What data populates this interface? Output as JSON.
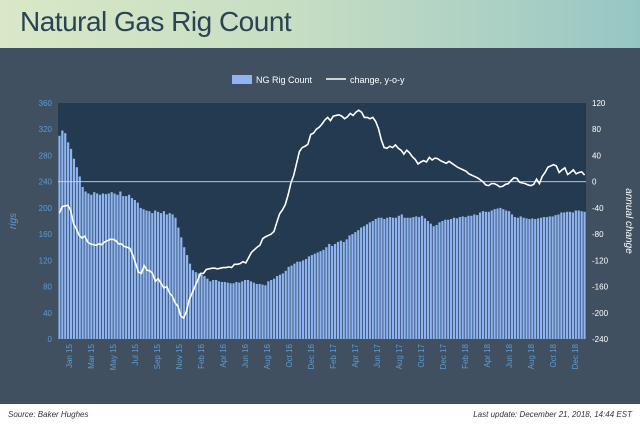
{
  "header": {
    "title": "Natural Gas Rig Count"
  },
  "footer": {
    "source": "Source: Baker Hughes",
    "updated": "Last update: December 21, 2018, 14:44 EST"
  },
  "colors": {
    "bar": "#8fb4f0",
    "line": "#ffffff",
    "plot_bg": "#233a50",
    "page_bg": "#405061",
    "axis_text": "#5b9bd5"
  },
  "chart_data": {
    "type": "bar",
    "ylabel": "rigs",
    "y2label": "annual change",
    "ylim": [
      0,
      360
    ],
    "y2lim": [
      -240,
      120
    ],
    "yticks": [
      0,
      40,
      80,
      120,
      160,
      200,
      240,
      280,
      320,
      360
    ],
    "y2ticks": [
      -240,
      -200,
      -160,
      -120,
      -80,
      -40,
      0,
      40,
      80,
      120
    ],
    "grid": false,
    "legend_position": "top-center",
    "x_tick_labels": [
      "Jan 15",
      "Mar 15",
      "May 15",
      "Jul 15",
      "Sep 15",
      "Nov 15",
      "Feb 16",
      "Apr 16",
      "Jun 16",
      "Aug 16",
      "Oct 16",
      "Dec 16",
      "Feb 17",
      "Apr 17",
      "Jun 17",
      "Aug 17",
      "Oct 17",
      "Dec 17",
      "Feb 18",
      "Apr 18",
      "Jun 18",
      "Aug 18",
      "Oct 18",
      "Dec 18"
    ],
    "series": [
      {
        "name": "NG Rig Count",
        "type": "bar",
        "axis": "left",
        "values": [
          310,
          318,
          314,
          300,
          290,
          275,
          262,
          248,
          232,
          225,
          222,
          220,
          224,
          222,
          220,
          222,
          221,
          222,
          224,
          222,
          220,
          225,
          218,
          218,
          220,
          215,
          212,
          208,
          200,
          198,
          196,
          195,
          192,
          196,
          194,
          192,
          195,
          190,
          192,
          190,
          185,
          170,
          155,
          140,
          128,
          115,
          105,
          102,
          100,
          98,
          96,
          92,
          88,
          90,
          90,
          88,
          87,
          87,
          86,
          85,
          85,
          87,
          86,
          88,
          90,
          90,
          88,
          86,
          84,
          84,
          83,
          82,
          88,
          90,
          92,
          96,
          98,
          100,
          104,
          110,
          112,
          115,
          118,
          118,
          120,
          122,
          126,
          128,
          130,
          132,
          134,
          136,
          140,
          145,
          142,
          145,
          148,
          150,
          148,
          152,
          158,
          160,
          163,
          166,
          170,
          172,
          175,
          178,
          180,
          183,
          185,
          185,
          183,
          185,
          186,
          185,
          185,
          188,
          190,
          185,
          185,
          185,
          186,
          187,
          186,
          188,
          184,
          180,
          176,
          172,
          174,
          178,
          180,
          182,
          182,
          183,
          185,
          184,
          186,
          187,
          186,
          188,
          188,
          190,
          189,
          193,
          195,
          194,
          194,
          196,
          198,
          199,
          200,
          198,
          196,
          195,
          190,
          186,
          185,
          187,
          185,
          184,
          183,
          184,
          183,
          184,
          185,
          186,
          186,
          187,
          187,
          189,
          190,
          193,
          193,
          194,
          194,
          193,
          196,
          196,
          195,
          194
        ]
      },
      {
        "name": "change, y-o-y",
        "type": "line",
        "axis": "right",
        "values": [
          -48,
          -38,
          -37,
          -36,
          -44,
          -64,
          -72,
          -82,
          -86,
          -83,
          -92,
          -95,
          -96,
          -97,
          -95,
          -96,
          -92,
          -90,
          -88,
          -88,
          -90,
          -95,
          -95,
          -99,
          -100,
          -102,
          -112,
          -125,
          -138,
          -140,
          -128,
          -135,
          -136,
          -140,
          -152,
          -148,
          -155,
          -162,
          -160,
          -170,
          -175,
          -185,
          -190,
          -205,
          -208,
          -198,
          -180,
          -170,
          -160,
          -150,
          -140,
          -140,
          -134,
          -133,
          -132,
          -132,
          -133,
          -132,
          -131,
          -131,
          -130,
          -131,
          -126,
          -126,
          -125,
          -122,
          -124,
          -116,
          -108,
          -104,
          -100,
          -97,
          -87,
          -84,
          -82,
          -80,
          -76,
          -62,
          -49,
          -43,
          -35,
          -20,
          -2,
          10,
          28,
          46,
          52,
          54,
          57,
          72,
          74,
          80,
          83,
          88,
          94,
          98,
          93,
          100,
          101,
          102,
          100,
          96,
          99,
          104,
          101,
          106,
          109,
          106,
          98,
          98,
          96,
          98,
          92,
          81,
          64,
          52,
          51,
          54,
          52,
          56,
          51,
          48,
          42,
          48,
          44,
          38,
          34,
          27,
          30,
          32,
          30,
          37,
          33,
          36,
          35,
          32,
          30,
          28,
          31,
          28,
          25,
          22,
          20,
          18,
          16,
          12,
          10,
          8,
          6,
          3,
          0,
          -5,
          -6,
          -3,
          -3,
          -5,
          -8,
          -7,
          -4,
          -3,
          2,
          6,
          5,
          -1,
          -2,
          -3,
          -5,
          -6,
          -4,
          4,
          -3,
          8,
          14,
          22,
          24,
          26,
          24,
          14,
          18,
          21,
          11,
          14,
          18,
          12,
          14,
          15,
          10
        ]
      }
    ]
  }
}
